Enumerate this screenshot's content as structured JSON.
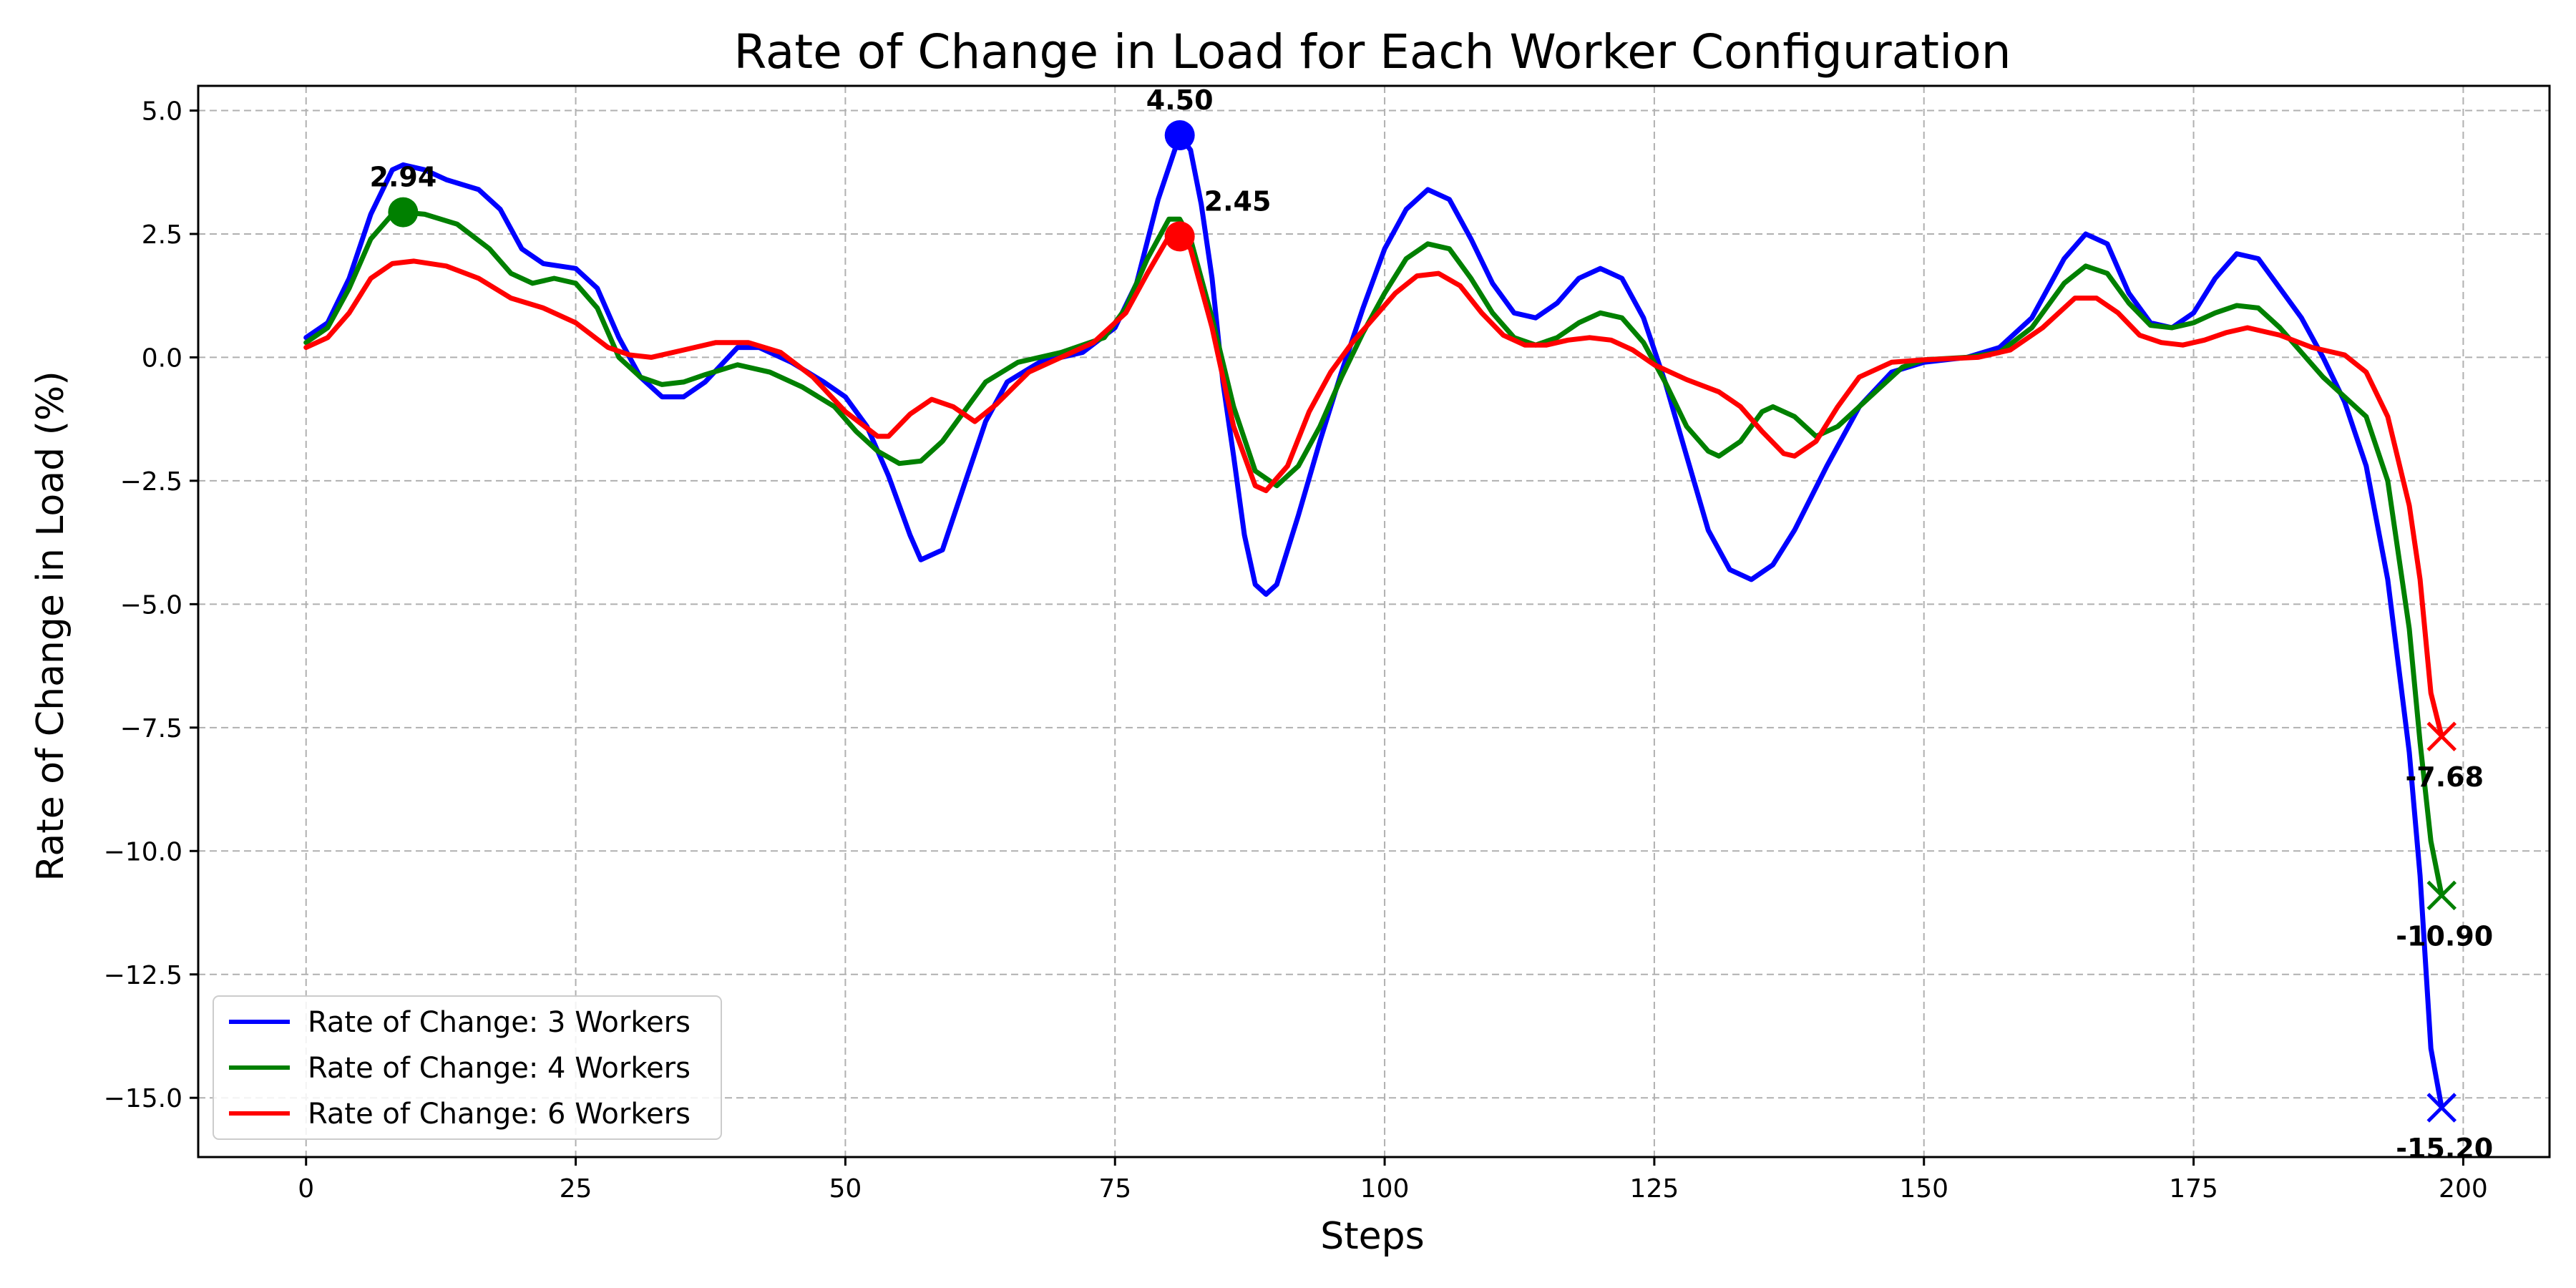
{
  "chart_data": {
    "type": "line",
    "title": "Rate of Change in Load for Each Worker Configuration",
    "xlabel": "Steps",
    "ylabel": "Rate of Change in Load (%)",
    "xlim": [
      -10,
      208
    ],
    "ylim": [
      -16.2,
      5.5
    ],
    "xticks": [
      0,
      25,
      50,
      75,
      100,
      125,
      150,
      175,
      200
    ],
    "yticks": [
      5.0,
      2.5,
      0.0,
      -2.5,
      -5.0,
      -7.5,
      -10.0,
      -12.5,
      -15.0
    ],
    "xtick_labels": [
      "0",
      "25",
      "50",
      "75",
      "100",
      "125",
      "150",
      "175",
      "200"
    ],
    "ytick_labels": [
      "5.0",
      "2.5",
      "0.0",
      "−2.5",
      "−5.0",
      "−7.5",
      "−10.0",
      "−12.5",
      "−15.0"
    ],
    "grid": true,
    "legend_position": "lower-left",
    "series": [
      {
        "name": "Rate of Change: 3 Workers",
        "color": "#0000ff",
        "points": [
          [
            0,
            0.4
          ],
          [
            2,
            0.7
          ],
          [
            4,
            1.6
          ],
          [
            6,
            2.9
          ],
          [
            8,
            3.8
          ],
          [
            9,
            3.9
          ],
          [
            11,
            3.8
          ],
          [
            13,
            3.6
          ],
          [
            16,
            3.4
          ],
          [
            18,
            3.0
          ],
          [
            20,
            2.2
          ],
          [
            22,
            1.9
          ],
          [
            25,
            1.8
          ],
          [
            27,
            1.4
          ],
          [
            29,
            0.4
          ],
          [
            31,
            -0.4
          ],
          [
            33,
            -0.8
          ],
          [
            35,
            -0.8
          ],
          [
            37,
            -0.5
          ],
          [
            40,
            0.2
          ],
          [
            42,
            0.2
          ],
          [
            45,
            -0.1
          ],
          [
            48,
            -0.5
          ],
          [
            50,
            -0.8
          ],
          [
            52,
            -1.4
          ],
          [
            54,
            -2.4
          ],
          [
            56,
            -3.6
          ],
          [
            57,
            -4.1
          ],
          [
            59,
            -3.9
          ],
          [
            61,
            -2.6
          ],
          [
            63,
            -1.3
          ],
          [
            65,
            -0.5
          ],
          [
            68,
            -0.1
          ],
          [
            72,
            0.1
          ],
          [
            75,
            0.6
          ],
          [
            77,
            1.5
          ],
          [
            79,
            3.2
          ],
          [
            81,
            4.5
          ],
          [
            82,
            4.2
          ],
          [
            83,
            3.1
          ],
          [
            84,
            1.6
          ],
          [
            85,
            -0.5
          ],
          [
            86,
            -2.0
          ],
          [
            87,
            -3.6
          ],
          [
            88,
            -4.6
          ],
          [
            89,
            -4.8
          ],
          [
            90,
            -4.6
          ],
          [
            92,
            -3.2
          ],
          [
            94,
            -1.7
          ],
          [
            96,
            -0.3
          ],
          [
            98,
            1.0
          ],
          [
            100,
            2.2
          ],
          [
            102,
            3.0
          ],
          [
            104,
            3.4
          ],
          [
            106,
            3.2
          ],
          [
            108,
            2.4
          ],
          [
            110,
            1.5
          ],
          [
            112,
            0.9
          ],
          [
            114,
            0.8
          ],
          [
            116,
            1.1
          ],
          [
            118,
            1.6
          ],
          [
            120,
            1.8
          ],
          [
            122,
            1.6
          ],
          [
            124,
            0.8
          ],
          [
            126,
            -0.5
          ],
          [
            128,
            -2.0
          ],
          [
            130,
            -3.5
          ],
          [
            132,
            -4.3
          ],
          [
            134,
            -4.5
          ],
          [
            136,
            -4.2
          ],
          [
            138,
            -3.5
          ],
          [
            141,
            -2.2
          ],
          [
            144,
            -1.0
          ],
          [
            147,
            -0.3
          ],
          [
            150,
            -0.1
          ],
          [
            154,
            0.0
          ],
          [
            157,
            0.2
          ],
          [
            160,
            0.8
          ],
          [
            163,
            2.0
          ],
          [
            165,
            2.5
          ],
          [
            167,
            2.3
          ],
          [
            169,
            1.3
          ],
          [
            171,
            0.7
          ],
          [
            173,
            0.6
          ],
          [
            175,
            0.9
          ],
          [
            177,
            1.6
          ],
          [
            179,
            2.1
          ],
          [
            181,
            2.0
          ],
          [
            183,
            1.4
          ],
          [
            185,
            0.8
          ],
          [
            187,
            0.0
          ],
          [
            189,
            -0.9
          ],
          [
            191,
            -2.2
          ],
          [
            193,
            -4.5
          ],
          [
            195,
            -8.0
          ],
          [
            196,
            -10.5
          ],
          [
            197,
            -14.0
          ],
          [
            198,
            -15.2
          ]
        ]
      },
      {
        "name": "Rate of Change: 4 Workers",
        "color": "#008000",
        "points": [
          [
            0,
            0.3
          ],
          [
            2,
            0.6
          ],
          [
            4,
            1.4
          ],
          [
            6,
            2.4
          ],
          [
            8,
            2.9
          ],
          [
            9,
            2.94
          ],
          [
            11,
            2.9
          ],
          [
            14,
            2.7
          ],
          [
            17,
            2.2
          ],
          [
            19,
            1.7
          ],
          [
            21,
            1.5
          ],
          [
            23,
            1.6
          ],
          [
            25,
            1.5
          ],
          [
            27,
            1.0
          ],
          [
            29,
            0.0
          ],
          [
            31,
            -0.4
          ],
          [
            33,
            -0.55
          ],
          [
            35,
            -0.5
          ],
          [
            37,
            -0.35
          ],
          [
            40,
            -0.15
          ],
          [
            43,
            -0.3
          ],
          [
            46,
            -0.6
          ],
          [
            49,
            -1.0
          ],
          [
            51,
            -1.5
          ],
          [
            53,
            -1.9
          ],
          [
            55,
            -2.15
          ],
          [
            57,
            -2.1
          ],
          [
            59,
            -1.7
          ],
          [
            61,
            -1.1
          ],
          [
            63,
            -0.5
          ],
          [
            66,
            -0.1
          ],
          [
            70,
            0.1
          ],
          [
            74,
            0.4
          ],
          [
            76,
            1.0
          ],
          [
            78,
            2.0
          ],
          [
            80,
            2.8
          ],
          [
            81,
            2.8
          ],
          [
            82,
            2.4
          ],
          [
            84,
            0.8
          ],
          [
            86,
            -1.0
          ],
          [
            88,
            -2.3
          ],
          [
            90,
            -2.6
          ],
          [
            92,
            -2.2
          ],
          [
            94,
            -1.4
          ],
          [
            96,
            -0.4
          ],
          [
            98,
            0.5
          ],
          [
            100,
            1.3
          ],
          [
            102,
            2.0
          ],
          [
            104,
            2.3
          ],
          [
            106,
            2.2
          ],
          [
            108,
            1.6
          ],
          [
            110,
            0.9
          ],
          [
            112,
            0.4
          ],
          [
            114,
            0.25
          ],
          [
            116,
            0.4
          ],
          [
            118,
            0.7
          ],
          [
            120,
            0.9
          ],
          [
            122,
            0.8
          ],
          [
            124,
            0.3
          ],
          [
            126,
            -0.5
          ],
          [
            128,
            -1.4
          ],
          [
            130,
            -1.9
          ],
          [
            131,
            -2.0
          ],
          [
            133,
            -1.7
          ],
          [
            135,
            -1.1
          ],
          [
            136,
            -1.0
          ],
          [
            138,
            -1.2
          ],
          [
            140,
            -1.6
          ],
          [
            142,
            -1.4
          ],
          [
            145,
            -0.8
          ],
          [
            148,
            -0.2
          ],
          [
            150,
            -0.05
          ],
          [
            154,
            0.0
          ],
          [
            157,
            0.1
          ],
          [
            160,
            0.6
          ],
          [
            163,
            1.5
          ],
          [
            165,
            1.85
          ],
          [
            167,
            1.7
          ],
          [
            169,
            1.1
          ],
          [
            171,
            0.65
          ],
          [
            173,
            0.6
          ],
          [
            175,
            0.7
          ],
          [
            177,
            0.9
          ],
          [
            179,
            1.05
          ],
          [
            181,
            1.0
          ],
          [
            183,
            0.6
          ],
          [
            185,
            0.1
          ],
          [
            187,
            -0.4
          ],
          [
            189,
            -0.8
          ],
          [
            191,
            -1.2
          ],
          [
            193,
            -2.5
          ],
          [
            195,
            -5.5
          ],
          [
            196,
            -7.8
          ],
          [
            197,
            -9.8
          ],
          [
            198,
            -10.9
          ]
        ]
      },
      {
        "name": "Rate of Change: 6 Workers",
        "color": "#ff0000",
        "points": [
          [
            0,
            0.2
          ],
          [
            2,
            0.4
          ],
          [
            4,
            0.9
          ],
          [
            6,
            1.6
          ],
          [
            8,
            1.9
          ],
          [
            10,
            1.95
          ],
          [
            13,
            1.85
          ],
          [
            16,
            1.6
          ],
          [
            19,
            1.2
          ],
          [
            22,
            1.0
          ],
          [
            25,
            0.7
          ],
          [
            28,
            0.2
          ],
          [
            30,
            0.05
          ],
          [
            32,
            0.0
          ],
          [
            35,
            0.15
          ],
          [
            38,
            0.3
          ],
          [
            41,
            0.3
          ],
          [
            44,
            0.1
          ],
          [
            47,
            -0.4
          ],
          [
            50,
            -1.1
          ],
          [
            53,
            -1.6
          ],
          [
            54,
            -1.6
          ],
          [
            56,
            -1.15
          ],
          [
            58,
            -0.85
          ],
          [
            60,
            -1.0
          ],
          [
            62,
            -1.3
          ],
          [
            64,
            -0.95
          ],
          [
            67,
            -0.3
          ],
          [
            70,
            0.0
          ],
          [
            73,
            0.3
          ],
          [
            76,
            0.9
          ],
          [
            78,
            1.7
          ],
          [
            80,
            2.45
          ],
          [
            81,
            2.45
          ],
          [
            82,
            2.2
          ],
          [
            84,
            0.6
          ],
          [
            86,
            -1.4
          ],
          [
            88,
            -2.6
          ],
          [
            89,
            -2.7
          ],
          [
            91,
            -2.2
          ],
          [
            93,
            -1.1
          ],
          [
            95,
            -0.3
          ],
          [
            97,
            0.3
          ],
          [
            99,
            0.8
          ],
          [
            101,
            1.3
          ],
          [
            103,
            1.65
          ],
          [
            105,
            1.7
          ],
          [
            107,
            1.45
          ],
          [
            109,
            0.9
          ],
          [
            111,
            0.45
          ],
          [
            113,
            0.25
          ],
          [
            115,
            0.25
          ],
          [
            117,
            0.35
          ],
          [
            119,
            0.4
          ],
          [
            121,
            0.35
          ],
          [
            123,
            0.15
          ],
          [
            125,
            -0.15
          ],
          [
            128,
            -0.45
          ],
          [
            131,
            -0.7
          ],
          [
            133,
            -1.0
          ],
          [
            135,
            -1.5
          ],
          [
            137,
            -1.95
          ],
          [
            138,
            -2.0
          ],
          [
            140,
            -1.7
          ],
          [
            142,
            -1.0
          ],
          [
            144,
            -0.4
          ],
          [
            147,
            -0.1
          ],
          [
            150,
            -0.05
          ],
          [
            155,
            0.0
          ],
          [
            158,
            0.15
          ],
          [
            161,
            0.6
          ],
          [
            164,
            1.2
          ],
          [
            166,
            1.2
          ],
          [
            168,
            0.9
          ],
          [
            170,
            0.45
          ],
          [
            172,
            0.3
          ],
          [
            174,
            0.25
          ],
          [
            176,
            0.35
          ],
          [
            178,
            0.5
          ],
          [
            180,
            0.6
          ],
          [
            183,
            0.45
          ],
          [
            186,
            0.2
          ],
          [
            189,
            0.05
          ],
          [
            191,
            -0.3
          ],
          [
            193,
            -1.2
          ],
          [
            195,
            -3.0
          ],
          [
            196,
            -4.5
          ],
          [
            197,
            -6.8
          ],
          [
            198,
            -7.68
          ]
        ]
      }
    ],
    "markers": [
      {
        "series": 1,
        "shape": "circle",
        "x": 9,
        "y": 2.94,
        "label": "2.94",
        "label_position": "above"
      },
      {
        "series": 0,
        "shape": "circle",
        "x": 81,
        "y": 4.5,
        "label": "4.50",
        "label_position": "above"
      },
      {
        "series": 2,
        "shape": "circle",
        "x": 81,
        "y": 2.45,
        "label": "2.45",
        "label_position": "right"
      },
      {
        "series": 2,
        "shape": "x",
        "x": 198,
        "y": -7.68,
        "label": "-7.68",
        "label_position": "below"
      },
      {
        "series": 1,
        "shape": "x",
        "x": 198,
        "y": -10.9,
        "label": "-10.90",
        "label_position": "below"
      },
      {
        "series": 0,
        "shape": "x",
        "x": 198,
        "y": -15.2,
        "label": "-15.20",
        "label_position": "below"
      }
    ]
  }
}
